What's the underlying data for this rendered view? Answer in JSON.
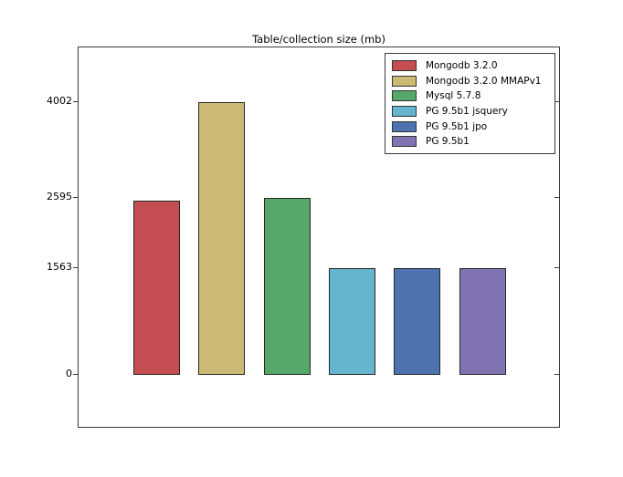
{
  "chart_data": {
    "type": "bar",
    "title": "Table/collection size (mb)",
    "categories": [
      "Mongodb 3.2.0",
      "Mongodb 3.2.0 MMAPv1",
      "Mysql 5.7.8",
      "PG 9.5b1 jsquery",
      "PG 9.5b1 jpo",
      "PG 9.5b1"
    ],
    "series": [
      {
        "name": "Mongodb 3.2.0",
        "value": 2550,
        "color": "#c44e52"
      },
      {
        "name": "Mongodb 3.2.0 MMAPv1",
        "value": 4002,
        "color": "#ccb974"
      },
      {
        "name": "Mysql 5.7.8",
        "value": 2595,
        "color": "#55a868"
      },
      {
        "name": "PG 9.5b1 jsquery",
        "value": 1563,
        "color": "#64b5cd"
      },
      {
        "name": "PG 9.5b1 jpo",
        "value": 1563,
        "color": "#4c72b0"
      },
      {
        "name": "PG 9.5b1",
        "value": 1563,
        "color": "#8172b2"
      }
    ],
    "xlabel": "",
    "ylabel": "",
    "yticks": [
      0,
      1563,
      2595,
      4002
    ],
    "ylim": [
      -790,
      4805
    ],
    "grid": false,
    "legend_position": "upper right"
  }
}
